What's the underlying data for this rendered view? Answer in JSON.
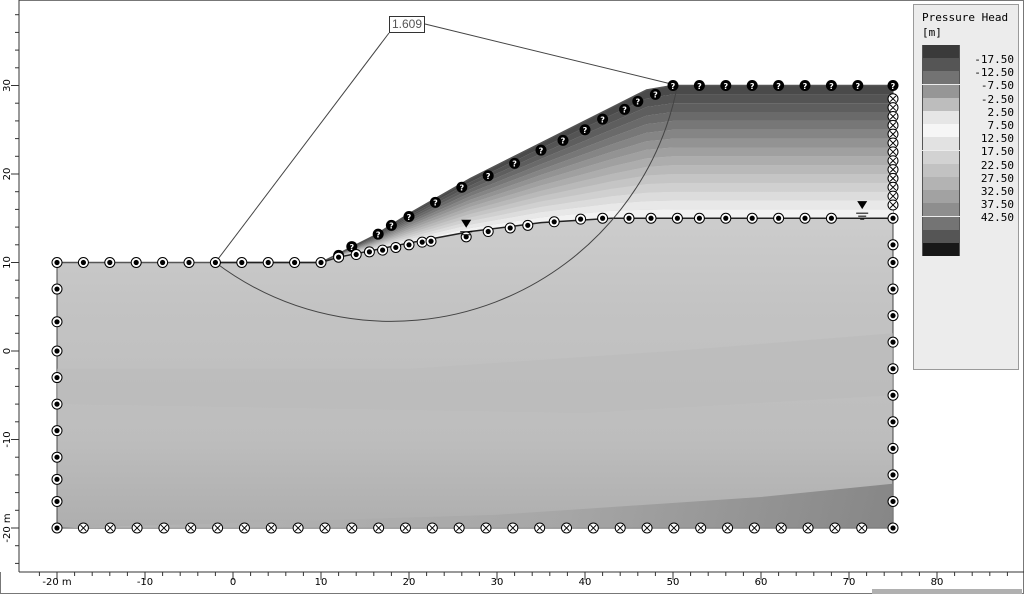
{
  "fos_label": "1.609",
  "legend": {
    "title": "Pressure Head\n[m]",
    "entries": [
      {
        "value": "-17.50",
        "color": "#3a3a3a"
      },
      {
        "value": "-12.50",
        "color": "#555555"
      },
      {
        "value": "-7.50",
        "color": "#737373"
      },
      {
        "value": "-2.50",
        "color": "#969696"
      },
      {
        "value": "2.50",
        "color": "#bdbdbd"
      },
      {
        "value": "7.50",
        "color": "#e6e6e6"
      },
      {
        "value": "12.50",
        "color": "#f6f6f6"
      },
      {
        "value": "17.50",
        "color": "#e2e2e2"
      },
      {
        "value": "22.50",
        "color": "#d2d2d2"
      },
      {
        "value": "27.50",
        "color": "#c2c2c2"
      },
      {
        "value": "32.50",
        "color": "#b3b3b3"
      },
      {
        "value": "37.50",
        "color": "#a2a2a2"
      },
      {
        "value": "42.50",
        "color": "#8e8e8e"
      },
      {
        "value": "",
        "color": "#747474"
      },
      {
        "value": "",
        "color": "#555555"
      },
      {
        "value": "",
        "color": "#181818"
      }
    ]
  },
  "x_axis": {
    "ticks": [
      {
        "v": -20,
        "label": "-20 m"
      },
      {
        "v": -10,
        "label": "-10"
      },
      {
        "v": 0,
        "label": "0"
      },
      {
        "v": 10,
        "label": "10"
      },
      {
        "v": 20,
        "label": "20"
      },
      {
        "v": 30,
        "label": "30"
      },
      {
        "v": 40,
        "label": "40"
      },
      {
        "v": 50,
        "label": "50"
      },
      {
        "v": 60,
        "label": "60"
      },
      {
        "v": 70,
        "label": "70"
      },
      {
        "v": 80,
        "label": "80"
      }
    ]
  },
  "y_axis": {
    "ticks": [
      {
        "v": 30,
        "label": "30"
      },
      {
        "v": 20,
        "label": "20"
      },
      {
        "v": 10,
        "label": "10"
      },
      {
        "v": 0,
        "label": "0"
      },
      {
        "v": -10,
        "label": "-10"
      },
      {
        "v": -20,
        "label": "-20 m"
      }
    ]
  },
  "model": {
    "ground_surface": [
      [
        -20,
        10
      ],
      [
        -2,
        10
      ],
      [
        10,
        10
      ],
      [
        12,
        11
      ],
      [
        16,
        13
      ],
      [
        20,
        15.5
      ],
      [
        27,
        19.5
      ],
      [
        35,
        23.5
      ],
      [
        43,
        27.5
      ],
      [
        47,
        29.5
      ],
      [
        50,
        30
      ],
      [
        75,
        30
      ]
    ],
    "water_table": [
      [
        -2,
        10
      ],
      [
        10,
        10
      ],
      [
        12,
        10.6
      ],
      [
        16,
        11.4
      ],
      [
        20,
        12.2
      ],
      [
        27,
        13.5
      ],
      [
        35,
        14.5
      ],
      [
        43,
        15
      ],
      [
        75,
        15
      ]
    ],
    "bottom_y": -20,
    "left_x": -20,
    "right_x": 75,
    "slip_circle": {
      "cx": 19,
      "cy": 35.5,
      "r": 31.7
    }
  },
  "colors": {
    "soil_light": "#d9d9d9",
    "soil_mid": "#c6c6c6",
    "soil_dark": "#8f8f8f",
    "boundary": "#333333"
  }
}
